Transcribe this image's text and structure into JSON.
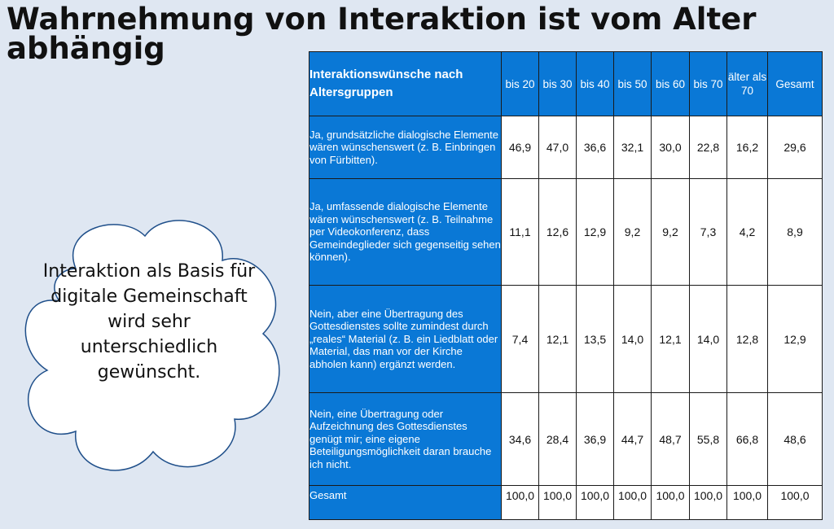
{
  "slide": {
    "title": "Wahrnehmung von Interaktion ist vom Alter abhängig",
    "cloud_text": "Interaktion als Basis für digitale Gemeinschaft wird sehr unterschiedlich gewünscht."
  },
  "table": {
    "header_label": "Interaktionswünsche nach Altersgruppen",
    "columns": [
      "bis 20",
      "bis 30",
      "bis 40",
      "bis 50",
      "bis 60",
      "bis 70",
      "älter als 70",
      "Gesamt"
    ],
    "rows": [
      {
        "label": "Ja, grundsätzliche dialogische Elemente wären wünschenswert (z. B. Einbringen von Fürbitten).",
        "values": [
          "46,9",
          "47,0",
          "36,6",
          "32,1",
          "30,0",
          "22,8",
          "16,2",
          "29,6"
        ]
      },
      {
        "label": "Ja, umfassende dialogische Elemente wären wünschenswert (z. B. Teilnahme per Videokonferenz, dass Gemeindeglieder sich gegenseitig sehen können).",
        "values": [
          "11,1",
          "12,6",
          "12,9",
          "9,2",
          "9,2",
          "7,3",
          "4,2",
          "8,9"
        ]
      },
      {
        "label": "Nein, aber eine Übertragung des Gottesdienstes sollte zumindest durch „reales“ Material (z. B. ein Liedblatt oder Material, das man vor der Kirche abholen kann) ergänzt werden.",
        "values": [
          "7,4",
          "12,1",
          "13,5",
          "14,0",
          "12,1",
          "14,0",
          "12,8",
          "12,9"
        ]
      },
      {
        "label": "Nein, eine Übertragung oder Aufzeichnung des Gottesdienstes genügt mir; eine eigene Beteiligungsmöglichkeit daran brauche ich nicht.",
        "values": [
          "34,6",
          "28,4",
          "36,9",
          "44,7",
          "48,7",
          "55,8",
          "66,8",
          "48,6"
        ]
      },
      {
        "label": "Gesamt",
        "values": [
          "100,0",
          "100,0",
          "100,0",
          "100,0",
          "100,0",
          "100,0",
          "100,0",
          "100,0"
        ]
      }
    ]
  }
}
